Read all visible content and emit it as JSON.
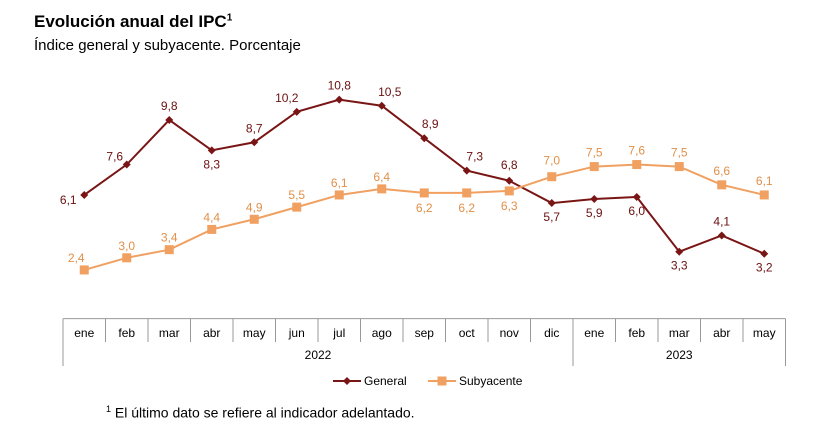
{
  "title": "Evolución anual del IPC",
  "title_sup": "1",
  "subtitle": "Índice general y subyacente. Porcentaje",
  "footnote_sup": "1",
  "footnote": "El último dato se refiere al indicador adelantado.",
  "chart_data": {
    "type": "line",
    "categories": [
      "ene",
      "feb",
      "mar",
      "abr",
      "may",
      "jun",
      "jul",
      "ago",
      "sep",
      "oct",
      "nov",
      "dic",
      "ene",
      "feb",
      "mar",
      "abr",
      "may"
    ],
    "years": [
      {
        "label": "2022",
        "span": 12
      },
      {
        "label": "2023",
        "span": 5
      }
    ],
    "legend_position": "bottom",
    "grid": false,
    "ylim": [
      0,
      12
    ],
    "series": [
      {
        "name": "General",
        "color": "#7a1515",
        "marker": "diamond",
        "values": [
          6.1,
          7.6,
          9.8,
          8.3,
          8.7,
          10.2,
          10.8,
          10.5,
          8.9,
          7.3,
          6.8,
          5.7,
          5.9,
          6.0,
          3.3,
          4.1,
          3.2
        ]
      },
      {
        "name": "Subyacente",
        "color": "#f0a060",
        "marker": "square",
        "values": [
          2.4,
          3.0,
          3.4,
          4.4,
          4.9,
          5.5,
          6.1,
          6.4,
          6.2,
          6.2,
          6.3,
          7.0,
          7.5,
          7.6,
          7.5,
          6.6,
          6.1
        ]
      }
    ]
  }
}
